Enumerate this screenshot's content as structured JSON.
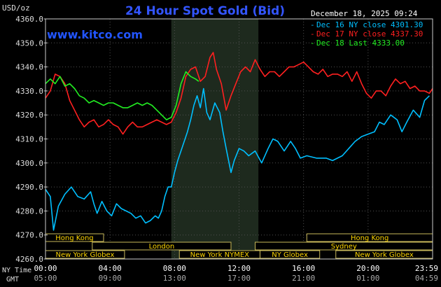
{
  "chart_data": {
    "type": "line",
    "title": "24 Hour Spot Gold (Bid)",
    "date_label": "December 18, 2025 09:24",
    "watermark": "www.kitco.com",
    "ylabel": "USD/oz",
    "ylim": [
      4260,
      4360
    ],
    "yticks": [
      "4360.0",
      "4350.0",
      "4340.0",
      "4330.0",
      "4320.0",
      "4310.0",
      "4300.0",
      "4290.0",
      "4280.0",
      "4270.0",
      "4260.0"
    ],
    "x_axis": {
      "row1_label": "NY Time",
      "row2_label": "GMT",
      "ny_ticks": [
        "00:00",
        "04:00",
        "08:00",
        "12:00",
        "16:00",
        "20:00",
        "23:59"
      ],
      "gmt_ticks": [
        "05:00",
        "09:00",
        "13:00",
        "17:00",
        "21:00",
        "01:00",
        "04:59"
      ]
    },
    "legend": [
      {
        "label": "Dec 16 NY close 4301.30",
        "color": "#00BFFF"
      },
      {
        "label": "Dec 17 NY close 4337.30",
        "color": "#FF2020"
      },
      {
        "label": "Dec 18 Last 4333.00",
        "color": "#22EE22"
      }
    ],
    "shaded_hours": [
      7.8,
      13.2
    ],
    "sessions": [
      {
        "name": "Hong Kong",
        "start": 0.0,
        "end": 3.6,
        "row": 0
      },
      {
        "name": "Hong Kong",
        "start": 16.2,
        "end": 24.0,
        "row": 0
      },
      {
        "name": "London",
        "start": 2.9,
        "end": 11.5,
        "row": 1
      },
      {
        "name": "Sydney",
        "start": 13.0,
        "end": 24.0,
        "row": 1
      },
      {
        "name": "New York Globex",
        "start": 0.0,
        "end": 4.9,
        "row": 2
      },
      {
        "name": "New York NYMEX",
        "start": 8.3,
        "end": 13.3,
        "row": 2
      },
      {
        "name": "NY Globex",
        "start": 13.3,
        "end": 17.0,
        "row": 2
      },
      {
        "name": "New York Globex",
        "start": 18.0,
        "end": 24.0,
        "row": 2
      }
    ],
    "series": [
      {
        "name": "Dec 16 NY close 4301.30",
        "color": "#00BFFF",
        "points": [
          [
            0,
            4289
          ],
          [
            0.3,
            4286
          ],
          [
            0.5,
            4272
          ],
          [
            0.8,
            4282
          ],
          [
            1.2,
            4287
          ],
          [
            1.6,
            4290
          ],
          [
            2.0,
            4286
          ],
          [
            2.4,
            4285
          ],
          [
            2.8,
            4288
          ],
          [
            3.0,
            4283
          ],
          [
            3.2,
            4279
          ],
          [
            3.5,
            4284
          ],
          [
            3.8,
            4280
          ],
          [
            4.1,
            4278
          ],
          [
            4.4,
            4283
          ],
          [
            4.7,
            4281
          ],
          [
            5.0,
            4280
          ],
          [
            5.3,
            4279
          ],
          [
            5.6,
            4277
          ],
          [
            5.9,
            4278
          ],
          [
            6.2,
            4275
          ],
          [
            6.5,
            4276
          ],
          [
            6.8,
            4278
          ],
          [
            7.0,
            4277
          ],
          [
            7.2,
            4280
          ],
          [
            7.4,
            4286
          ],
          [
            7.6,
            4290
          ],
          [
            7.8,
            4290
          ],
          [
            8.0,
            4296
          ],
          [
            8.2,
            4301
          ],
          [
            8.5,
            4307
          ],
          [
            8.8,
            4313
          ],
          [
            9.0,
            4318
          ],
          [
            9.2,
            4324
          ],
          [
            9.4,
            4328
          ],
          [
            9.6,
            4323
          ],
          [
            9.8,
            4331
          ],
          [
            10.0,
            4321
          ],
          [
            10.2,
            4318
          ],
          [
            10.5,
            4325
          ],
          [
            10.8,
            4321
          ],
          [
            11.0,
            4313
          ],
          [
            11.2,
            4306
          ],
          [
            11.5,
            4296
          ],
          [
            11.7,
            4301
          ],
          [
            12.0,
            4306
          ],
          [
            12.3,
            4305
          ],
          [
            12.6,
            4303
          ],
          [
            13.0,
            4305
          ],
          [
            13.4,
            4300
          ],
          [
            13.8,
            4306
          ],
          [
            14.1,
            4310
          ],
          [
            14.4,
            4309
          ],
          [
            14.8,
            4305
          ],
          [
            15.2,
            4309
          ],
          [
            15.5,
            4306
          ],
          [
            15.8,
            4302
          ],
          [
            16.2,
            4303
          ],
          [
            16.8,
            4302
          ],
          [
            17.4,
            4302
          ],
          [
            17.8,
            4301
          ],
          [
            18.4,
            4303
          ],
          [
            18.8,
            4306
          ],
          [
            19.2,
            4309
          ],
          [
            19.6,
            4311
          ],
          [
            20.0,
            4312
          ],
          [
            20.4,
            4313
          ],
          [
            20.7,
            4317
          ],
          [
            21.0,
            4316
          ],
          [
            21.4,
            4320
          ],
          [
            21.8,
            4318
          ],
          [
            22.1,
            4313
          ],
          [
            22.4,
            4317
          ],
          [
            22.8,
            4322
          ],
          [
            23.2,
            4319
          ],
          [
            23.5,
            4326
          ],
          [
            23.8,
            4328
          ]
        ]
      },
      {
        "name": "Dec 17 NY close 4337.30",
        "color": "#FF2020",
        "points": [
          [
            0,
            4327
          ],
          [
            0.3,
            4330
          ],
          [
            0.6,
            4337
          ],
          [
            0.9,
            4336
          ],
          [
            1.2,
            4333
          ],
          [
            1.5,
            4326
          ],
          [
            1.8,
            4322
          ],
          [
            2.1,
            4318
          ],
          [
            2.4,
            4315
          ],
          [
            2.7,
            4317
          ],
          [
            3.0,
            4318
          ],
          [
            3.3,
            4315
          ],
          [
            3.6,
            4316
          ],
          [
            3.9,
            4318
          ],
          [
            4.2,
            4316
          ],
          [
            4.5,
            4315
          ],
          [
            4.8,
            4312
          ],
          [
            5.1,
            4315
          ],
          [
            5.4,
            4317
          ],
          [
            5.7,
            4315
          ],
          [
            6.0,
            4315
          ],
          [
            6.3,
            4316
          ],
          [
            6.6,
            4317
          ],
          [
            6.9,
            4318
          ],
          [
            7.2,
            4317
          ],
          [
            7.5,
            4316
          ],
          [
            7.8,
            4317
          ],
          [
            8.1,
            4321
          ],
          [
            8.4,
            4327
          ],
          [
            8.7,
            4336
          ],
          [
            9.0,
            4339
          ],
          [
            9.3,
            4340
          ],
          [
            9.6,
            4334
          ],
          [
            9.9,
            4336
          ],
          [
            10.2,
            4344
          ],
          [
            10.4,
            4346
          ],
          [
            10.6,
            4339
          ],
          [
            10.9,
            4333
          ],
          [
            11.2,
            4322
          ],
          [
            11.5,
            4328
          ],
          [
            11.8,
            4333
          ],
          [
            12.1,
            4338
          ],
          [
            12.4,
            4340
          ],
          [
            12.7,
            4338
          ],
          [
            13.0,
            4343
          ],
          [
            13.3,
            4339
          ],
          [
            13.6,
            4336
          ],
          [
            13.9,
            4338
          ],
          [
            14.2,
            4338
          ],
          [
            14.5,
            4336
          ],
          [
            14.8,
            4338
          ],
          [
            15.1,
            4340
          ],
          [
            15.4,
            4340
          ],
          [
            15.7,
            4341
          ],
          [
            16.0,
            4342
          ],
          [
            16.3,
            4340
          ],
          [
            16.6,
            4338
          ],
          [
            16.9,
            4337
          ],
          [
            17.2,
            4339
          ],
          [
            17.5,
            4336
          ],
          [
            17.8,
            4337
          ],
          [
            18.1,
            4337
          ],
          [
            18.4,
            4336
          ],
          [
            18.7,
            4338
          ],
          [
            19.0,
            4334
          ],
          [
            19.3,
            4338
          ],
          [
            19.6,
            4333
          ],
          [
            19.9,
            4329
          ],
          [
            20.2,
            4327
          ],
          [
            20.5,
            4330
          ],
          [
            20.8,
            4330
          ],
          [
            21.1,
            4328
          ],
          [
            21.4,
            4332
          ],
          [
            21.7,
            4335
          ],
          [
            22.0,
            4333
          ],
          [
            22.3,
            4334
          ],
          [
            22.6,
            4331
          ],
          [
            22.9,
            4332
          ],
          [
            23.2,
            4330
          ],
          [
            23.5,
            4330
          ],
          [
            23.8,
            4329
          ],
          [
            24.0,
            4331
          ]
        ]
      },
      {
        "name": "Dec 18 Last 4333.00",
        "color": "#22EE22",
        "points": [
          [
            0,
            4333
          ],
          [
            0.3,
            4335
          ],
          [
            0.6,
            4333
          ],
          [
            0.9,
            4336
          ],
          [
            1.2,
            4332
          ],
          [
            1.5,
            4333
          ],
          [
            1.8,
            4331
          ],
          [
            2.1,
            4328
          ],
          [
            2.4,
            4327
          ],
          [
            2.7,
            4325
          ],
          [
            3.0,
            4326
          ],
          [
            3.3,
            4325
          ],
          [
            3.6,
            4324
          ],
          [
            3.9,
            4325
          ],
          [
            4.2,
            4325
          ],
          [
            4.5,
            4324
          ],
          [
            4.8,
            4323
          ],
          [
            5.1,
            4323
          ],
          [
            5.4,
            4324
          ],
          [
            5.7,
            4325
          ],
          [
            6.0,
            4324
          ],
          [
            6.3,
            4325
          ],
          [
            6.6,
            4324
          ],
          [
            6.9,
            4322
          ],
          [
            7.2,
            4320
          ],
          [
            7.5,
            4318
          ],
          [
            7.8,
            4319
          ],
          [
            8.1,
            4324
          ],
          [
            8.4,
            4333
          ],
          [
            8.7,
            4338
          ],
          [
            9.0,
            4336
          ],
          [
            9.3,
            4335
          ],
          [
            9.5,
            4334
          ]
        ]
      }
    ]
  }
}
